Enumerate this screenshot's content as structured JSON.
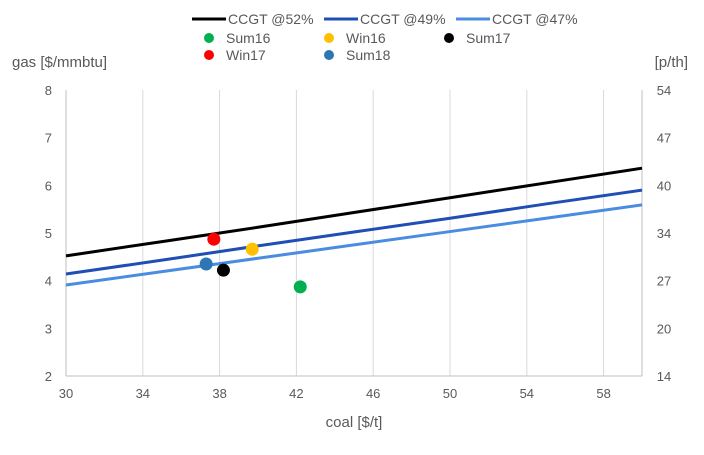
{
  "chart_data": {
    "type": "line",
    "title": "",
    "xlabel": "coal [$/t]",
    "ylabel": "gas [$/mmbtu]",
    "y2label": "[p/th]",
    "xlim": [
      30,
      60
    ],
    "ylim": [
      2,
      8
    ],
    "xticks": [
      30,
      34,
      38,
      42,
      46,
      50,
      54,
      58
    ],
    "yticks": [
      2,
      3,
      4,
      5,
      6,
      7,
      8
    ],
    "y2ticks": [
      14,
      20,
      27,
      34,
      40,
      47,
      54
    ],
    "grid": "vertical",
    "legend": "top",
    "series": [
      {
        "name": "CCGT @52%",
        "color": "#000000",
        "x": [
          30,
          35,
          40,
          45,
          50,
          55,
          60
        ],
        "y": [
          4.52,
          4.82,
          5.12,
          5.43,
          5.74,
          6.05,
          6.36
        ]
      },
      {
        "name": "CCGT @49%",
        "color": "#1f4eb4",
        "x": [
          30,
          35,
          40,
          45,
          50,
          55,
          60
        ],
        "y": [
          4.14,
          4.43,
          4.73,
          5.02,
          5.31,
          5.61,
          5.9
        ]
      },
      {
        "name": "CCGT @47%",
        "color": "#4a8de0",
        "x": [
          30,
          35,
          40,
          45,
          50,
          55,
          60
        ],
        "y": [
          3.91,
          4.19,
          4.47,
          4.75,
          5.03,
          5.31,
          5.59
        ]
      }
    ],
    "points": [
      {
        "name": "Sum16",
        "color": "#00b050",
        "x": 42.2,
        "y": 3.87
      },
      {
        "name": "Win16",
        "color": "#ffc000",
        "x": 39.7,
        "y": 4.66
      },
      {
        "name": "Sum17",
        "color": "#000000",
        "x": 38.2,
        "y": 4.22
      },
      {
        "name": "Win17",
        "color": "#ff0000",
        "x": 37.7,
        "y": 4.87
      },
      {
        "name": "Sum18",
        "color": "#2e75b6",
        "x": 37.3,
        "y": 4.35
      }
    ]
  }
}
